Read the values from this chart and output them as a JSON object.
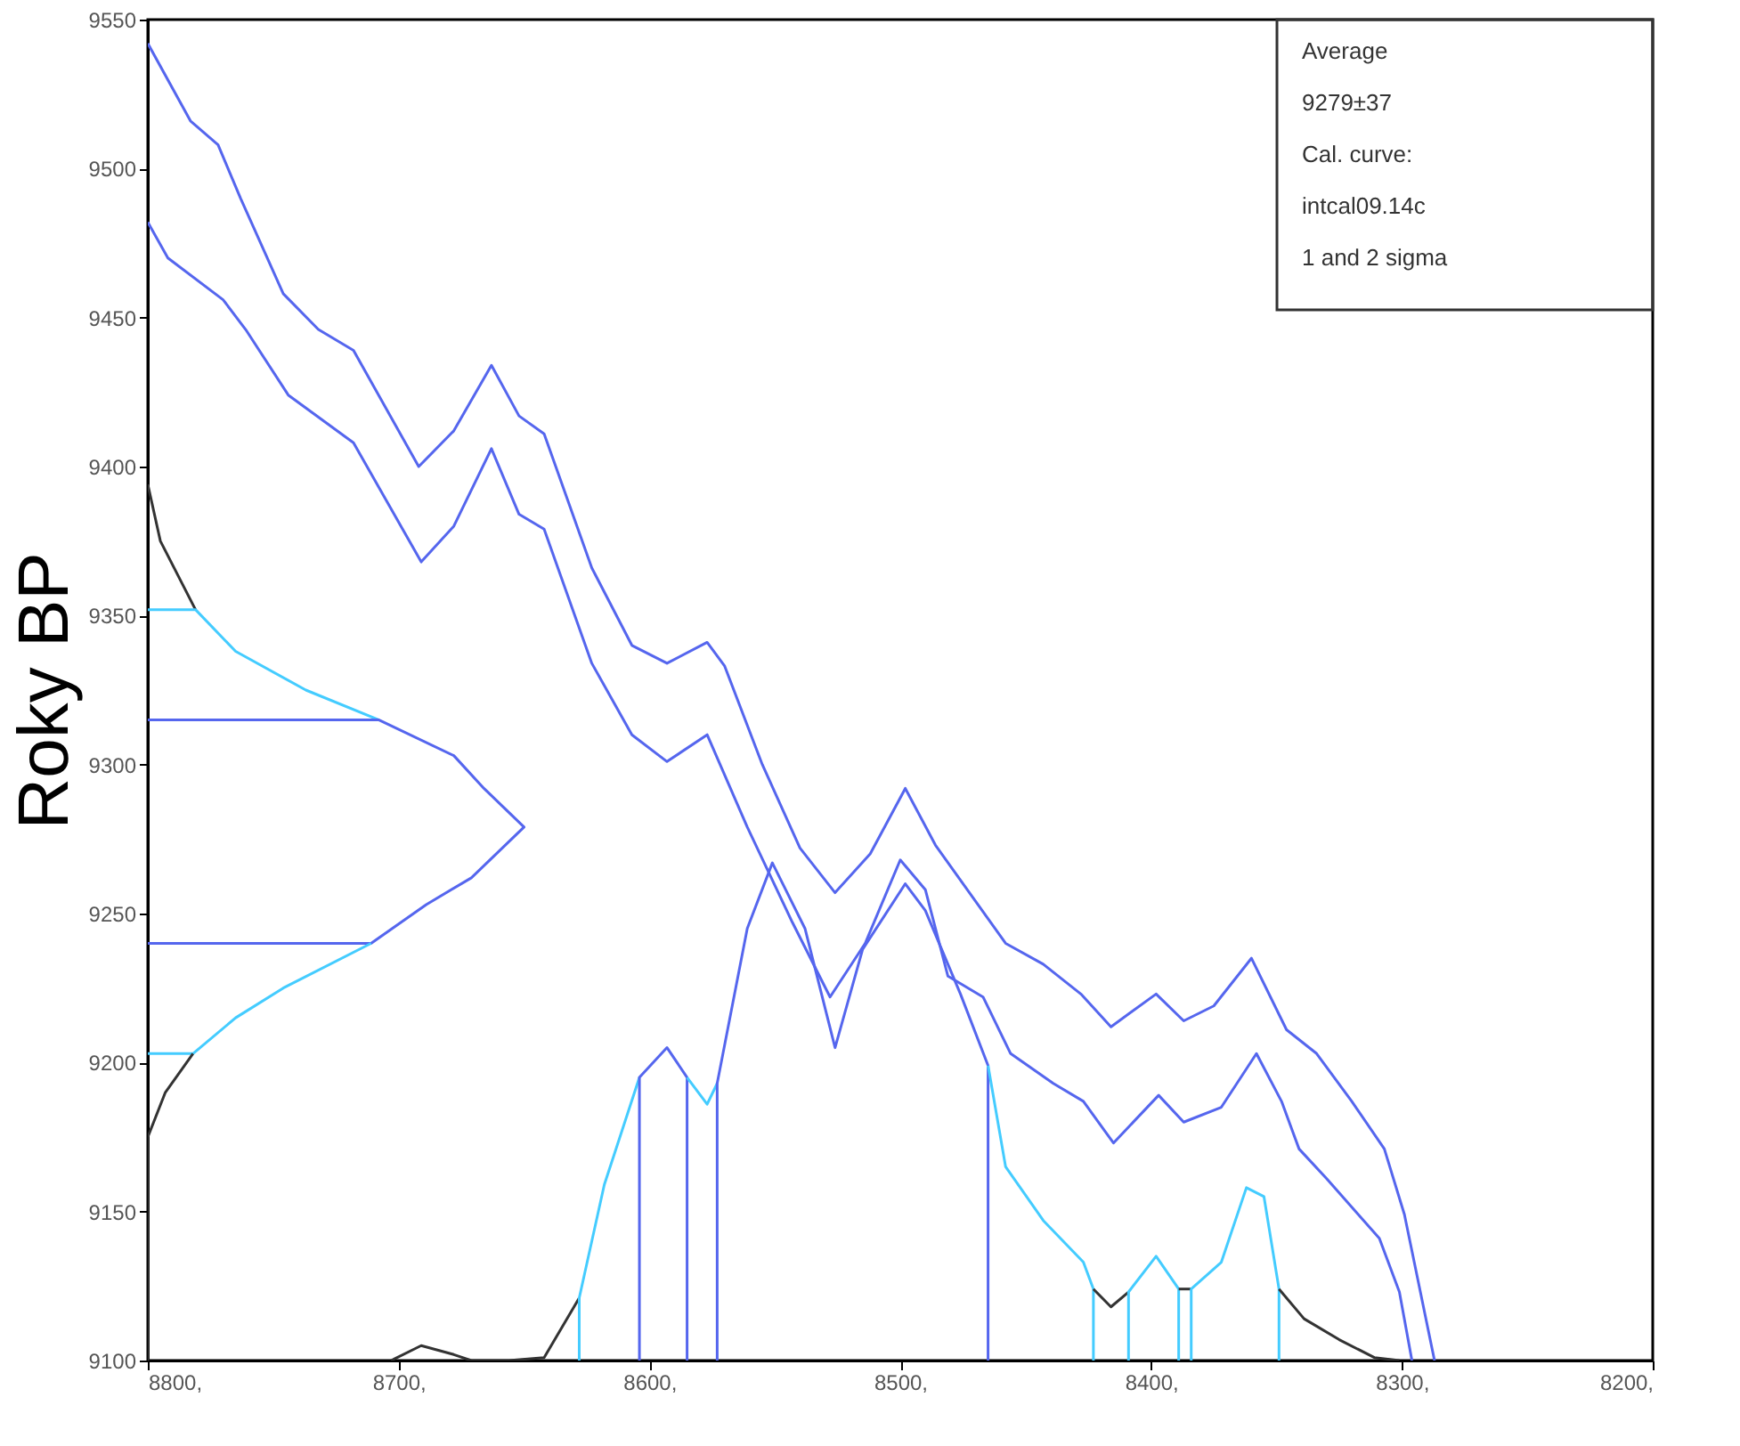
{
  "chart_data": {
    "type": "line",
    "ylabel": "Roky BP",
    "grid": false,
    "xlim": [
      8800,
      8200
    ],
    "ylim": [
      9100,
      9550
    ],
    "xticks": [
      {
        "value": 8800,
        "label": "8800,"
      },
      {
        "value": 8700,
        "label": "8700,"
      },
      {
        "value": 8600,
        "label": "8600,"
      },
      {
        "value": 8500,
        "label": "8500,"
      },
      {
        "value": 8400,
        "label": "8400,"
      },
      {
        "value": 8300,
        "label": "8300,"
      },
      {
        "value": 8200,
        "label": "8200,"
      }
    ],
    "yticks": [
      9100,
      9150,
      9200,
      9250,
      9300,
      9350,
      9400,
      9450,
      9500,
      9550
    ],
    "annotations": [
      "Average",
      "9279±37",
      "Cal. curve:",
      "intcal09.14c",
      "1 and 2 sigma"
    ],
    "series": [
      {
        "color": "#5566ee",
        "x": [
          8800,
          8783,
          8772,
          8763,
          8746,
          8732,
          8718,
          8692,
          8678,
          8663,
          8652,
          8642,
          8623,
          8607,
          8593,
          8577,
          8570,
          8555,
          8540,
          8526,
          8512,
          8498,
          8486,
          8458,
          8443,
          8428,
          8416,
          8398,
          8387,
          8375,
          8360,
          8346,
          8334,
          8320,
          8307,
          8299,
          8287
        ],
        "values": [
          9542,
          9516,
          9508,
          9490,
          9458,
          9446,
          9439,
          9400,
          9412,
          9434,
          9417,
          9411,
          9366,
          9340,
          9334,
          9341,
          9333,
          9300,
          9272,
          9257,
          9270,
          9292,
          9273,
          9240,
          9233,
          9223,
          9212,
          9223,
          9214,
          9219,
          9235,
          9211,
          9203,
          9187,
          9171,
          9149,
          9100
        ]
      },
      {
        "color": "#5566ee",
        "x": [
          8800,
          8792,
          8770,
          8761,
          8744,
          8718,
          8691,
          8678,
          8663,
          8652,
          8642,
          8623,
          8607,
          8593,
          8577,
          8561,
          8543,
          8528,
          8514,
          8500,
          8490,
          8481,
          8467,
          8456,
          8439,
          8427,
          8415,
          8397,
          8387,
          8372,
          8358,
          8348,
          8341,
          8330,
          8309,
          8301,
          8296
        ],
        "values": [
          9482,
          9470,
          9456,
          9446,
          9424,
          9408,
          9368,
          9380,
          9406,
          9384,
          9379,
          9334,
          9310,
          9301,
          9310,
          9279,
          9247,
          9222,
          9240,
          9268,
          9258,
          9229,
          9222,
          9203,
          9193,
          9187,
          9173,
          9189,
          9180,
          9185,
          9203,
          9187,
          9171,
          9161,
          9141,
          9123,
          9100
        ]
      },
      {
        "color": "#333333",
        "x": [
          8800,
          8795,
          8781
        ],
        "values": [
          9394,
          9375,
          9352
        ]
      },
      {
        "color": "#44ccff",
        "x": [
          8800,
          8781,
          8765,
          8737,
          8708
        ],
        "values": [
          9352,
          9352,
          9338,
          9325,
          9315
        ]
      },
      {
        "color": "#5566ee",
        "x": [
          8800,
          8708,
          8678,
          8666,
          8650,
          8671,
          8689,
          8711,
          8800
        ],
        "values": [
          9315,
          9315,
          9303,
          9292,
          9279,
          9262,
          9253,
          9240,
          9240
        ]
      },
      {
        "color": "#44ccff",
        "x": [
          8711,
          8746,
          8765,
          8782,
          8800
        ],
        "values": [
          9240,
          9225,
          9215,
          9203,
          9203
        ]
      },
      {
        "color": "#333333",
        "x": [
          8782,
          8793,
          8800,
          8800
        ],
        "values": [
          9203,
          9190,
          9175,
          9100
        ]
      },
      {
        "color": "#333333",
        "x": [
          8703,
          8691,
          8678,
          8671,
          8656,
          8642,
          8628
        ],
        "values": [
          9100,
          9105,
          9102,
          9100,
          9100,
          9101,
          9121
        ]
      },
      {
        "color": "#44ccff",
        "x": [
          8628,
          8628,
          8618,
          8604
        ],
        "values": [
          9100,
          9121,
          9159,
          9195
        ]
      },
      {
        "color": "#5566ee",
        "x": [
          8604,
          8604,
          8593,
          8585,
          8585
        ],
        "values": [
          9100,
          9195,
          9205,
          9195,
          9100
        ]
      },
      {
        "color": "#44ccff",
        "x": [
          8585,
          8577,
          8573
        ],
        "values": [
          9195,
          9186,
          9193
        ]
      },
      {
        "color": "#5566ee",
        "x": [
          8573,
          8573,
          8561,
          8551,
          8538,
          8526,
          8515,
          8498,
          8490,
          8476,
          8465,
          8465
        ],
        "values": [
          9100,
          9193,
          9245,
          9267,
          9245,
          9205,
          9238,
          9260,
          9251,
          9223,
          9199,
          9100
        ]
      },
      {
        "color": "#44ccff",
        "x": [
          8465,
          8458,
          8443,
          8427,
          8423,
          8423
        ],
        "values": [
          9199,
          9165,
          9147,
          9133,
          9124,
          9100
        ]
      },
      {
        "color": "#333333",
        "x": [
          8423,
          8416,
          8409
        ],
        "values": [
          9124,
          9118,
          9123
        ]
      },
      {
        "color": "#44ccff",
        "x": [
          8409,
          8409,
          8398,
          8389,
          8389
        ],
        "values": [
          9100,
          9123,
          9135,
          9124,
          9100
        ]
      },
      {
        "color": "#333333",
        "x": [
          8389,
          8384
        ],
        "values": [
          9124,
          9124
        ]
      },
      {
        "color": "#44ccff",
        "x": [
          8384,
          8384,
          8372,
          8362,
          8355,
          8349,
          8349
        ],
        "values": [
          9100,
          9124,
          9133,
          9158,
          9155,
          9124,
          9100
        ]
      },
      {
        "color": "#333333",
        "x": [
          8349,
          8339,
          8325,
          8311,
          8301
        ],
        "values": [
          9124,
          9114,
          9107,
          9101,
          9100
        ]
      }
    ]
  }
}
